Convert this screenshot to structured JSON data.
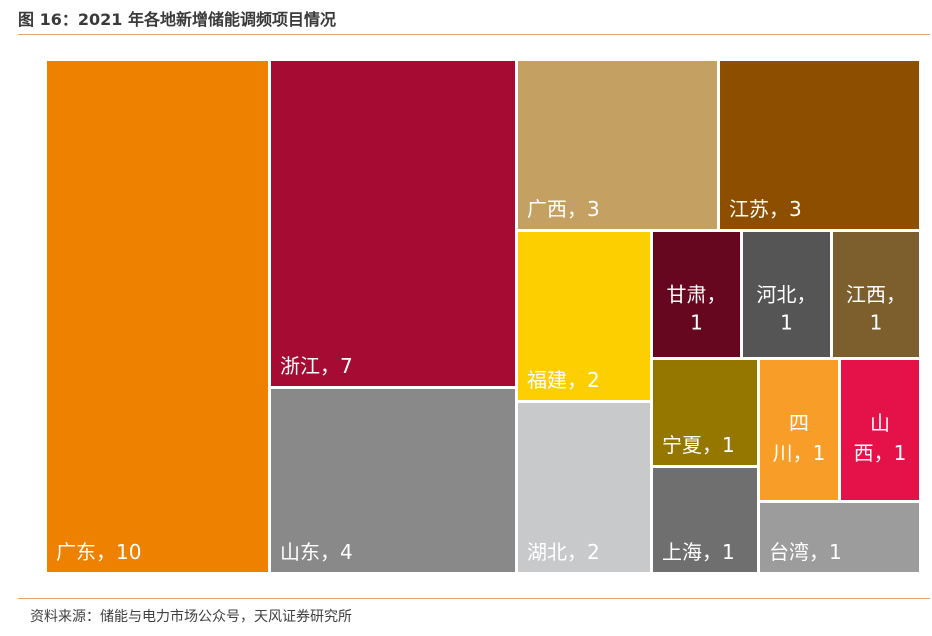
{
  "title": "图 16：2021 年各地新增储能调频项目情况",
  "source": "资料来源：储能与电力市场公众号，天风证券研究所",
  "chart_data": {
    "type": "treemap",
    "title": "",
    "tiles": [
      {
        "label": "广东，10",
        "name": "广东",
        "value": 10,
        "color": "#EE8200"
      },
      {
        "label": "浙江，7",
        "name": "浙江",
        "value": 7,
        "color": "#A60C33"
      },
      {
        "label": "山东，4",
        "name": "山东",
        "value": 4,
        "color": "#898989"
      },
      {
        "label": "广西，3",
        "name": "广西",
        "value": 3,
        "color": "#C4A062"
      },
      {
        "label": "江苏，3",
        "name": "江苏",
        "value": 3,
        "color": "#8E4E00"
      },
      {
        "label": "福建，2",
        "name": "福建",
        "value": 2,
        "color": "#FDCF00"
      },
      {
        "label": "湖北，2",
        "name": "湖北",
        "value": 2,
        "color": "#C8C9CB"
      },
      {
        "label": "甘肃，1",
        "name": "甘肃",
        "value": 1,
        "color": "#66061F"
      },
      {
        "label": "河北，1",
        "name": "河北",
        "value": 1,
        "color": "#555555"
      },
      {
        "label": "江西，1",
        "name": "江西",
        "value": 1,
        "color": "#7D5F2E"
      },
      {
        "label": "宁夏，1",
        "name": "宁夏",
        "value": 1,
        "color": "#957700"
      },
      {
        "label": "四川，1",
        "name": "四川",
        "value": 1,
        "color": "#F89E28"
      },
      {
        "label": "山西，1",
        "name": "山西",
        "value": 1,
        "color": "#E5124A"
      },
      {
        "label": "上海，1",
        "name": "上海",
        "value": 1,
        "color": "#6F6F6F"
      },
      {
        "label": "台湾，1",
        "name": "台湾",
        "value": 1,
        "color": "#9C9C9C"
      }
    ]
  }
}
